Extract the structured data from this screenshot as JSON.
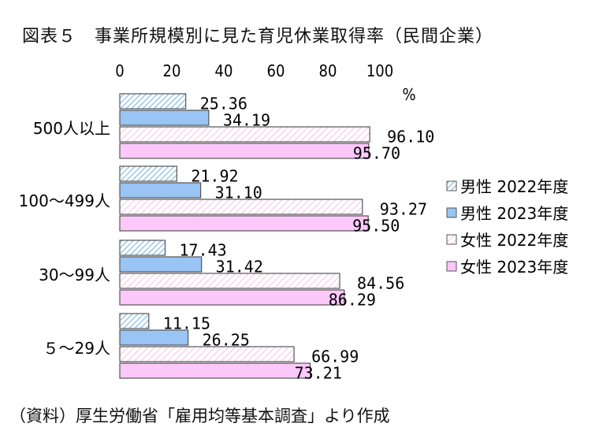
{
  "title": "図表５　事業所規模別に見た育児休業取得率（民間企業）",
  "source": "（資料）厚生労働省「雇用均等基本調査」より作成",
  "chart_data": {
    "type": "bar",
    "orientation": "horizontal",
    "unit": "%",
    "categories": [
      "500人以上",
      "100～499人",
      "30～99人",
      "５～29人"
    ],
    "xlim": [
      0,
      100
    ],
    "xticks": [
      0,
      20,
      40,
      60,
      80,
      100
    ],
    "grid": false,
    "legend_position": "right",
    "series": [
      {
        "name": "男性  2022年度",
        "values": [
          25.36,
          21.92,
          17.43,
          11.15
        ],
        "label_text": [
          "25.36",
          "21.92",
          "17.43",
          "11.15"
        ],
        "pattern": "diag-blue"
      },
      {
        "name": "男性  2023年度",
        "values": [
          34.19,
          31.1,
          31.42,
          26.25
        ],
        "label_text": [
          "34.19",
          "31.10",
          "31.42",
          "26.25"
        ],
        "pattern": "solid-blue"
      },
      {
        "name": "女性  2022年度",
        "values": [
          96.1,
          93.27,
          84.56,
          66.99
        ],
        "label_text": [
          "96.10",
          "93.27",
          "84.56",
          "66.99"
        ],
        "pattern": "diag-pink"
      },
      {
        "name": "女性  2023年度",
        "values": [
          95.7,
          95.5,
          86.29,
          73.21
        ],
        "label_text": [
          "95.70",
          "95.50",
          "86.29",
          "73.21"
        ],
        "pattern": "solid-pink"
      }
    ],
    "colors": {
      "male_2023": "#99c4f4",
      "male_2022_stripe": "#7ab6e6",
      "female_2023": "#fcc8fa",
      "female_2022_stripe": "#f5c2e6",
      "edge": "#555555"
    }
  }
}
